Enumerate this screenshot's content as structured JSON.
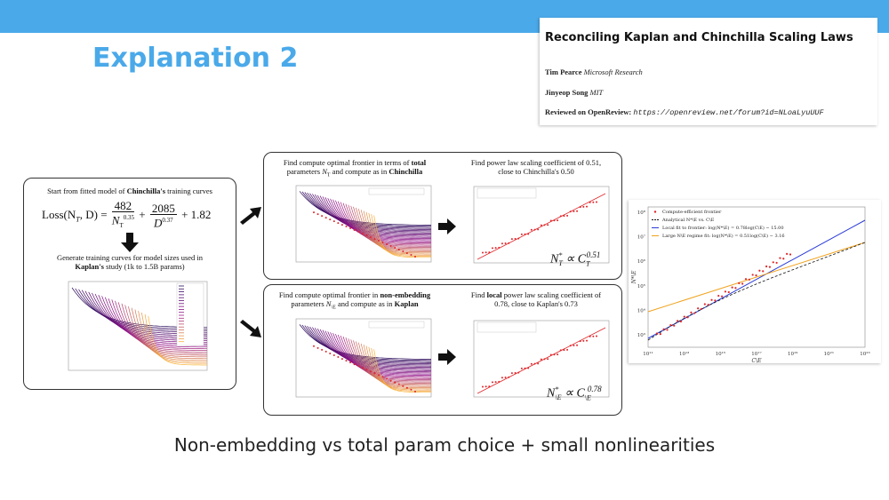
{
  "slide": {
    "title": "Explanation 2",
    "footer": "Non-embedding vs total param choice + small nonlinearities"
  },
  "paper": {
    "title": "Reconciling Kaplan and Chinchilla Scaling Laws",
    "author1_name": "Tim Pearce",
    "author1_affiliation": "Microsoft Research",
    "author2_name": "Jinyeop Song",
    "author2_affiliation": "MIT",
    "review_label": "Reviewed on OpenReview:",
    "review_url": "https://openreview.net/forum?id=NLoaLyuUUF"
  },
  "left_box": {
    "caption_prefix": "Start from fitted model of ",
    "caption_bold": "Chinchilla's",
    "caption_suffix": " training curves",
    "eq_lhs": "Loss(N",
    "eq_lhs_sub": "T",
    "eq_lhs_rest": ", D) =",
    "eq_frac1_num": "482",
    "eq_frac1_den": "N",
    "eq_frac1_den_sub": "T",
    "eq_frac1_den_sup": "0.35",
    "eq_plus1": "+",
    "eq_frac2_num": "2085",
    "eq_frac2_den": "D",
    "eq_frac2_den_sup": "0.37",
    "eq_tail": "+ 1.82",
    "caption2_line1": "Generate training curves for model sizes used in",
    "caption2_bold": "Kaplan's",
    "caption2_rest": " study (1k to 1.5B params)"
  },
  "top_box": {
    "left_caption_1": "Find compute optimal frontier in terms of ",
    "left_caption_bold": "total",
    "left_caption_2": "parameters ",
    "left_caption_sym": "N",
    "left_caption_sym_sub": "T",
    "left_caption_3": " and compute as in ",
    "left_caption_bold2": "Chinchilla",
    "right_caption_1": "Find power law scaling coefficient of 0.51,",
    "right_caption_2": "close to Chinchilla's 0.50",
    "formula": "N*T ∝ C0.51"
  },
  "bottom_box": {
    "left_caption_1": "Find compute optimal frontier in ",
    "left_caption_bold": "non-embedding",
    "left_caption_2": "parameters ",
    "left_caption_sym": "N",
    "left_caption_sym_sub": "\\E",
    "left_caption_3": " and compute as in ",
    "left_caption_bold2": "Kaplan",
    "right_caption_1_prefix": "Find ",
    "right_caption_bold": "local",
    "right_caption_1_suffix": " power law scaling coefficient of",
    "right_caption_2": "0.78, close to Kaplan's 0.73",
    "formula": "N*\\E ∝ C0.78"
  },
  "right_chart": {
    "legend": [
      {
        "label": "Compute-efficient frontier",
        "color": "#e0262a"
      },
      {
        "label": "Analytical N*\\E vs. C\\E",
        "color": "#111111"
      },
      {
        "label": "Local fit to frontier: log(N*\\E) = 0.78log(C\\E) − 15.00",
        "color": "#2a3bd6"
      },
      {
        "label": "Large N\\E regime fit: log(N*\\E) = 0.51log(C\\E) − 3.16",
        "color": "#f0a21c"
      }
    ],
    "xlabel": "C\\E",
    "ylabel": "N*\\E",
    "x_ticks": [
      "10¹¹",
      "10¹³",
      "10¹⁵",
      "10¹⁷",
      "10¹⁹",
      "10²¹",
      "10²³"
    ],
    "y_ticks": [
      "10⁸",
      "10⁷",
      "10⁶",
      "10⁵",
      "10⁴",
      "10³"
    ]
  },
  "colors": {
    "accent": "#4aa9e9",
    "frontier": "#e0262a",
    "local_fit": "#2a3bd6",
    "large_fit": "#f0a21c"
  }
}
